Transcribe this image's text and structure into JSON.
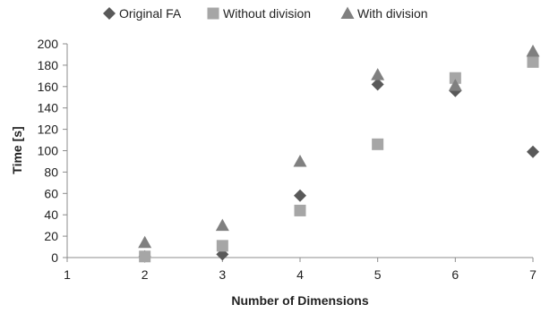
{
  "chart_data": {
    "type": "scatter",
    "xlabel": "Number of Dimensions",
    "ylabel": "Time [s]",
    "xlim": [
      1,
      7
    ],
    "ylim": [
      0,
      200
    ],
    "x_ticks": [
      "1",
      "2",
      "3",
      "4",
      "5",
      "6",
      "7"
    ],
    "y_ticks": [
      "0",
      "20",
      "40",
      "60",
      "80",
      "100",
      "120",
      "140",
      "160",
      "180",
      "200"
    ],
    "grid": false,
    "legend_position": "top",
    "series": [
      {
        "name": "Original FA",
        "marker": "diamond",
        "color": "#595959",
        "points": [
          [
            2,
            1
          ],
          [
            3,
            3
          ],
          [
            4,
            58
          ],
          [
            5,
            162
          ],
          [
            6,
            156
          ],
          [
            7,
            99
          ]
        ]
      },
      {
        "name": "Without division",
        "marker": "square",
        "color": "#a6a6a6",
        "points": [
          [
            2,
            1
          ],
          [
            3,
            11
          ],
          [
            4,
            44
          ],
          [
            5,
            106
          ],
          [
            6,
            168
          ],
          [
            7,
            183
          ]
        ]
      },
      {
        "name": "With division",
        "marker": "triangle",
        "color": "#808080",
        "points": [
          [
            2,
            14
          ],
          [
            3,
            30
          ],
          [
            4,
            90
          ],
          [
            5,
            171
          ],
          [
            6,
            161
          ],
          [
            7,
            193
          ]
        ]
      }
    ]
  }
}
